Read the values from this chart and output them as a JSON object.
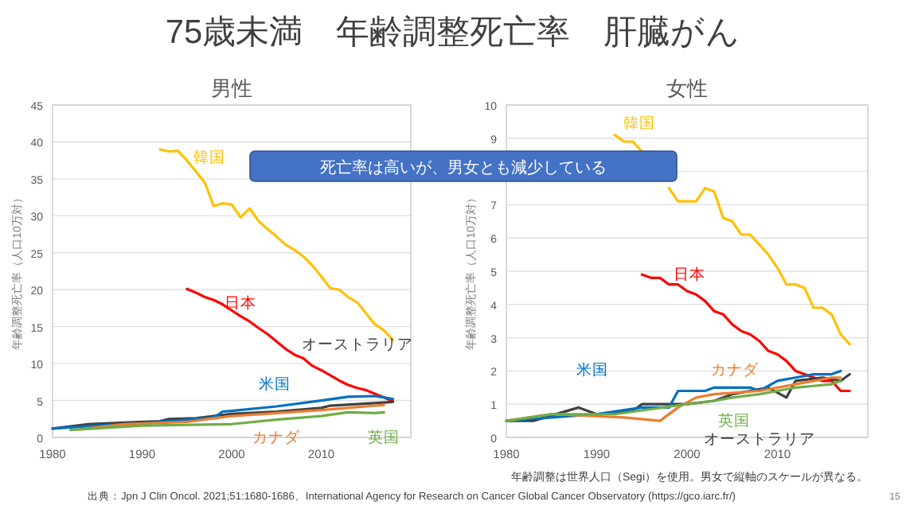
{
  "chart_data": [
    {
      "type": "line",
      "title": "男性",
      "ylabel": "年齢調整死亡率（人口10万対）",
      "xlim": [
        1980,
        2020
      ],
      "xticks": [
        1980,
        1990,
        2000,
        2010
      ],
      "ylim": [
        0,
        45
      ],
      "yticks": [
        0,
        5,
        10,
        15,
        20,
        25,
        30,
        35,
        40,
        45
      ],
      "grid": "y",
      "annotations": [
        "75歳未満　年齢調整死亡率　肝臓がん",
        "死亡率は高いが、男女とも減少している"
      ],
      "series": [
        {
          "name": "韓国",
          "color": "#ffc000",
          "x": [
            1992,
            1993,
            1994,
            1995,
            1996,
            1997,
            1998,
            1999,
            2000,
            2001,
            2002,
            2003,
            2004,
            2005,
            2006,
            2007,
            2008,
            2009,
            2010,
            2011,
            2012,
            2013,
            2014,
            2015,
            2016,
            2017,
            2018
          ],
          "values": [
            39,
            38.7,
            38.8,
            37.5,
            36,
            34.5,
            31.3,
            31.7,
            31.5,
            29.8,
            31,
            29.3,
            28.2,
            27.2,
            26.1,
            25.4,
            24.5,
            23.3,
            21.8,
            20.2,
            20,
            19,
            18.3,
            16.8,
            15.3,
            14.5,
            13.2
          ]
        },
        {
          "name": "日本",
          "color": "#ff0000",
          "x": [
            1995,
            1996,
            1997,
            1998,
            1999,
            2000,
            2001,
            2002,
            2003,
            2004,
            2005,
            2006,
            2007,
            2008,
            2009,
            2010,
            2011,
            2012,
            2013,
            2014,
            2015,
            2016,
            2017,
            2018
          ],
          "values": [
            20.1,
            19.6,
            19,
            18.6,
            18,
            17.2,
            16.4,
            15.7,
            14.8,
            14,
            13,
            12,
            11.2,
            10.7,
            9.7,
            9.1,
            8.4,
            7.7,
            7.1,
            6.7,
            6.4,
            5.9,
            5.4,
            4.9
          ]
        },
        {
          "name": "オーストラリア",
          "color": "#404040",
          "x": [
            1980,
            1984,
            1988,
            1992,
            1993,
            1996,
            2000,
            2005,
            2010,
            2011,
            2014,
            2018
          ],
          "values": [
            1.2,
            1.8,
            2,
            2.2,
            2.5,
            2.6,
            3.2,
            3.5,
            4,
            4.3,
            4.5,
            4.8
          ]
        },
        {
          "name": "米国",
          "color": "#0070c0",
          "x": [
            1980,
            1985,
            1990,
            1995,
            1998,
            1999,
            2000,
            2005,
            2010,
            2013,
            2016,
            2018
          ],
          "values": [
            1.2,
            1.6,
            1.9,
            2.4,
            2.7,
            3.5,
            3.6,
            4.2,
            5,
            5.5,
            5.6,
            5.2
          ]
        },
        {
          "name": "カナダ",
          "color": "#ed7d31",
          "x": [
            1983,
            1988,
            1995,
            2000,
            2005,
            2010,
            2015,
            2017
          ],
          "values": [
            1.1,
            1.8,
            2.1,
            2.9,
            3.3,
            3.7,
            4.2,
            4.4
          ]
        },
        {
          "name": "英国",
          "color": "#70ad47",
          "x": [
            1982,
            1990,
            2000,
            2005,
            2010,
            2013,
            2016,
            2017
          ],
          "values": [
            1,
            1.6,
            1.8,
            2.4,
            2.9,
            3.4,
            3.3,
            3.4
          ]
        }
      ]
    },
    {
      "type": "line",
      "title": "女性",
      "ylabel": "年齢調整死亡率（人口10万対）",
      "xlim": [
        1980,
        2020
      ],
      "xticks": [
        1980,
        1990,
        2000,
        2010
      ],
      "ylim": [
        0,
        10
      ],
      "yticks": [
        0,
        1,
        2,
        3,
        4,
        5,
        6,
        7,
        {
          "value": 8,
          "label": null
        },
        9,
        10
      ],
      "grid": "y",
      "annotations": [
        "年齢調整は世界人口（Segi）を使用。男女で縦軸のスケールが異なる。",
        "出典：Jpn J Clin Oncol. 2021;51:1680-1686、International Agency for Research on Cancer Global Cancer Observatory (https://gco.iarc.fr/)",
        "15"
      ],
      "series": [
        {
          "name": "韓国",
          "color": "#ffc000",
          "x": [
            1992,
            1993,
            1994,
            1995,
            1996,
            1997,
            1998,
            1999,
            2000,
            2001,
            2002,
            2003,
            2004,
            2005,
            2006,
            2007,
            2008,
            2009,
            2010,
            2011,
            2012,
            2013,
            2014,
            2015,
            2016,
            2017,
            2018
          ],
          "values": [
            9.1,
            8.9,
            8.9,
            8.6,
            null,
            null,
            7.5,
            7.1,
            7.1,
            7.1,
            7.5,
            7.4,
            6.6,
            6.5,
            6.1,
            6.1,
            5.8,
            5.5,
            5.1,
            4.6,
            4.6,
            4.5,
            3.9,
            3.9,
            3.7,
            3.1,
            2.8
          ]
        },
        {
          "name": "日本",
          "color": "#ff0000",
          "x": [
            1995,
            1996,
            1997,
            1998,
            1999,
            2000,
            2001,
            2002,
            2003,
            2004,
            2005,
            2006,
            2007,
            2008,
            2009,
            2010,
            2011,
            2012,
            2013,
            2014,
            2015,
            2016,
            2017,
            2018
          ],
          "values": [
            4.9,
            4.8,
            4.8,
            4.6,
            4.6,
            4.4,
            4.3,
            4.1,
            3.8,
            3.7,
            3.4,
            3.2,
            3.1,
            2.9,
            2.6,
            2.5,
            2.3,
            2,
            1.9,
            1.8,
            1.7,
            1.7,
            1.4,
            1.4
          ]
        },
        {
          "name": "オーストラリア",
          "color": "#404040",
          "x": [
            1980,
            1983,
            1988,
            1990,
            1994,
            1995,
            2000,
            2003,
            2005,
            2009,
            2011,
            2012,
            2015,
            2017,
            2018
          ],
          "values": [
            0.5,
            0.5,
            0.9,
            0.7,
            0.8,
            1,
            1,
            1.1,
            1.3,
            1.5,
            1.2,
            1.7,
            1.8,
            1.7,
            1.9
          ]
        },
        {
          "name": "米国",
          "color": "#0070c0",
          "x": [
            1980,
            1985,
            1990,
            1995,
            1998,
            1999,
            2002,
            2003,
            2005,
            2007,
            2008,
            2010,
            2012,
            2014,
            2016,
            2017
          ],
          "values": [
            0.5,
            0.6,
            0.7,
            0.9,
            0.9,
            1.4,
            1.4,
            1.5,
            1.5,
            1.5,
            1.4,
            1.7,
            1.8,
            1.9,
            1.9,
            2
          ]
        },
        {
          "name": "カナダ",
          "color": "#ed7d31",
          "x": [
            1980,
            1985,
            1993,
            1997,
            1999,
            2001,
            2003,
            2008,
            2012,
            2016,
            2017
          ],
          "values": [
            0.5,
            0.7,
            0.6,
            0.5,
            0.9,
            1.2,
            1.3,
            1.4,
            1.6,
            1.8,
            1.8
          ]
        },
        {
          "name": "英国",
          "color": "#70ad47",
          "x": [
            1980,
            1985,
            1992,
            2000,
            2003,
            2005,
            2008,
            2012,
            2016,
            2017
          ],
          "values": [
            0.5,
            0.7,
            0.7,
            1,
            1.1,
            1.2,
            1.3,
            1.5,
            1.6,
            1.7
          ]
        }
      ]
    }
  ]
}
